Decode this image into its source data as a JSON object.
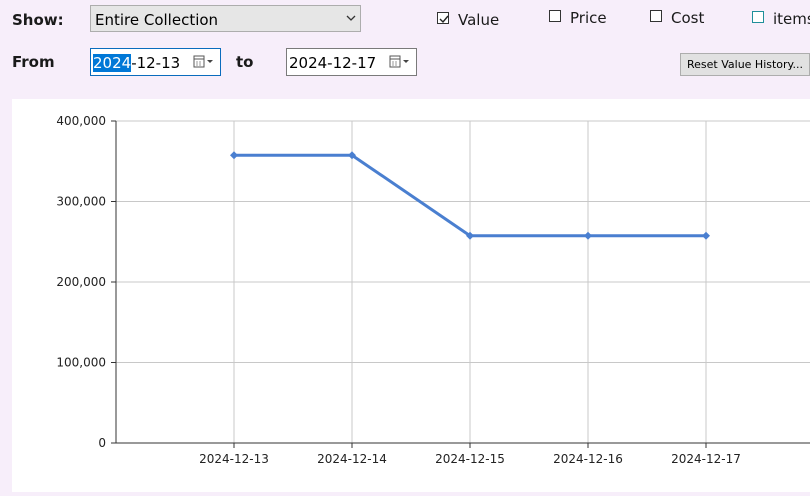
{
  "toolbar": {
    "show_label": "Show:",
    "show_value": "Entire Collection",
    "from_label": "From",
    "from_date_sel": "2024",
    "from_date_rest": "-12-13",
    "to_label": "to",
    "to_date": "2024-12-17",
    "checkboxes": [
      {
        "label": "Value",
        "checked": true
      },
      {
        "label": "Price",
        "checked": false
      },
      {
        "label": "Cost",
        "checked": false
      },
      {
        "label": "items",
        "checked": false
      }
    ],
    "reset_button": "Reset Value History..."
  },
  "chart_data": {
    "type": "line",
    "categories": [
      "2024-12-13",
      "2024-12-14",
      "2024-12-15",
      "2024-12-16",
      "2024-12-17"
    ],
    "series": [
      {
        "values": [
          357500,
          357500,
          257500,
          257500,
          257500
        ],
        "color": "#4a7fd0"
      }
    ],
    "yticks": [
      0,
      100000,
      200000,
      300000,
      400000
    ],
    "ytick_labels": [
      "0",
      "100,000",
      "200,000",
      "300,000",
      "400,000"
    ],
    "ylim": [
      0,
      400000
    ],
    "grid": true
  }
}
